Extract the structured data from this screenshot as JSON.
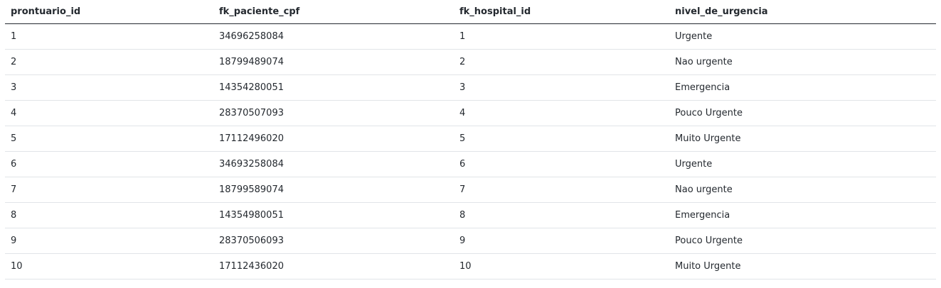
{
  "table": {
    "columns": [
      "prontuario_id",
      "fk_paciente_cpf",
      "fk_hospital_id",
      "nivel_de_urgencia"
    ],
    "rows": [
      [
        "1",
        "34696258084",
        "1",
        "Urgente"
      ],
      [
        "2",
        "18799489074",
        "2",
        "Nao urgente"
      ],
      [
        "3",
        "14354280051",
        "3",
        "Emergencia"
      ],
      [
        "4",
        "28370507093",
        "4",
        "Pouco Urgente"
      ],
      [
        "5",
        "17112496020",
        "5",
        "Muito Urgente"
      ],
      [
        "6",
        "34693258084",
        "6",
        "Urgente"
      ],
      [
        "7",
        "18799589074",
        "7",
        "Nao urgente"
      ],
      [
        "8",
        "14354980051",
        "8",
        "Emergencia"
      ],
      [
        "9",
        "28370506093",
        "9",
        "Pouco Urgente"
      ],
      [
        "10",
        "17112436020",
        "10",
        "Muito Urgente"
      ]
    ]
  }
}
